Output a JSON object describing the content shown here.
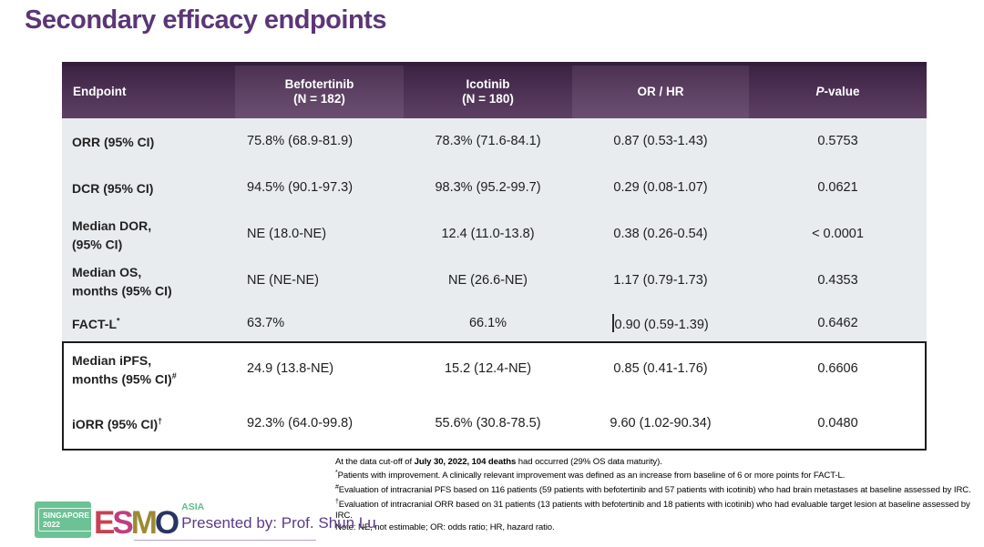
{
  "title": "Secondary efficacy endpoints",
  "table": {
    "columns": [
      {
        "label": "Endpoint",
        "sub": ""
      },
      {
        "label": "Befotertinib",
        "sub": "(N = 182)"
      },
      {
        "label": "Icotinib",
        "sub": "(N = 180)"
      },
      {
        "label": "OR / HR",
        "sub": ""
      },
      {
        "italic": "P",
        "rest": "-value"
      }
    ],
    "rows": [
      {
        "endpoint_line1": "ORR (95% CI)",
        "sup1": "",
        "endpoint_line2": "",
        "sup2": "",
        "befotertinib": "75.8% (68.9-81.9)",
        "icotinib": "78.3% (71.6-84.1)",
        "or_hr": "0.87 (0.53-1.43)",
        "p_value": "0.5753"
      },
      {
        "endpoint_line1": "DCR (95% CI)",
        "sup1": "",
        "endpoint_line2": "",
        "sup2": "",
        "befotertinib": "94.5% (90.1-97.3)",
        "icotinib": "98.3% (95.2-99.7)",
        "or_hr": "0.29 (0.08-1.07)",
        "p_value": "0.0621"
      },
      {
        "endpoint_line1": "Median DOR,",
        "sup1": "",
        "endpoint_line2": "(95% CI)",
        "sup2": "",
        "befotertinib": "NE (18.0-NE)",
        "icotinib": "12.4 (11.0-13.8)",
        "or_hr": "0.38 (0.26-0.54)",
        "p_value": "< 0.0001"
      },
      {
        "endpoint_line1": "Median OS,",
        "sup1": "",
        "endpoint_line2": "months (95% CI)",
        "sup2": "",
        "befotertinib": "NE (NE-NE)",
        "icotinib": "NE (26.6-NE)",
        "or_hr": "1.17 (0.79-1.73)",
        "p_value": "0.4353"
      },
      {
        "endpoint_line1": "FACT-L",
        "sup1": "*",
        "endpoint_line2": "",
        "sup2": "",
        "befotertinib": "63.7%",
        "icotinib": "66.1%",
        "or_hr": "0.90 (0.59-1.39)",
        "p_value": "0.6462"
      },
      {
        "endpoint_line1": "Median iPFS,",
        "sup1": "",
        "endpoint_line2": "months (95% CI)",
        "sup2": "#",
        "befotertinib": "24.9 (13.8-NE)",
        "icotinib": "15.2 (12.4-NE)",
        "or_hr": "0.85 (0.41-1.76)",
        "p_value": "0.6606"
      },
      {
        "endpoint_line1": "iORR (95% CI)",
        "sup1": "†",
        "endpoint_line2": "",
        "sup2": "",
        "befotertinib": "92.3% (64.0-99.8)",
        "icotinib": "55.6% (30.8-78.5)",
        "or_hr": "9.60 (1.02-90.34)",
        "p_value": "0.0480"
      }
    ]
  },
  "footnotes": {
    "line1_pre": "At the data cut-off of ",
    "line1_bold": "July 30, 2022, 104 deaths",
    "line1_post": " had occurred (29% OS data maturity).",
    "items": [
      {
        "sup": "*",
        "text": "Patients with improvement. A clinically relevant improvement was defined as an increase from baseline of 6 or more points for FACT-L."
      },
      {
        "sup": "#",
        "text": "Evaluation of intracranial PFS based on 116 patients (59 patients with befotertinib and 57 patients with icotinib) who had brain metastases at baseline assessed by IRC."
      },
      {
        "sup": "†",
        "text": "Evaluation of intracranial ORR based on 31 patients (13 patients with befotertinib and 18 patients with icotinib) who had evaluable target lesion at baseline assessed by IRC."
      }
    ],
    "note": "Note: NE, not estimable; OR: odds ratio; HR, hazard ratio."
  },
  "footer": {
    "badge_line1": "SINGAPORE",
    "badge_line2": "2022",
    "esmo_e": "E",
    "esmo_s": "S",
    "esmo_m": "M",
    "esmo_o": "O",
    "asia": "ASIA",
    "presented_by": "Presented by: Prof. Shun Lu"
  },
  "colors": {
    "title_purple": "#5b3677",
    "header_dark": "#46294d",
    "header_light": "#5e4164",
    "body_gray": "#e8ecef",
    "box_border": "#1c1c1c",
    "esmo_e": "#c74352",
    "esmo_s": "#bf3f7e",
    "esmo_m": "#9c8b33",
    "esmo_o": "#27355f",
    "asia_green": "#5fbd8c",
    "badge_green": "#6cc295",
    "presented_purple": "#5b3b86"
  }
}
